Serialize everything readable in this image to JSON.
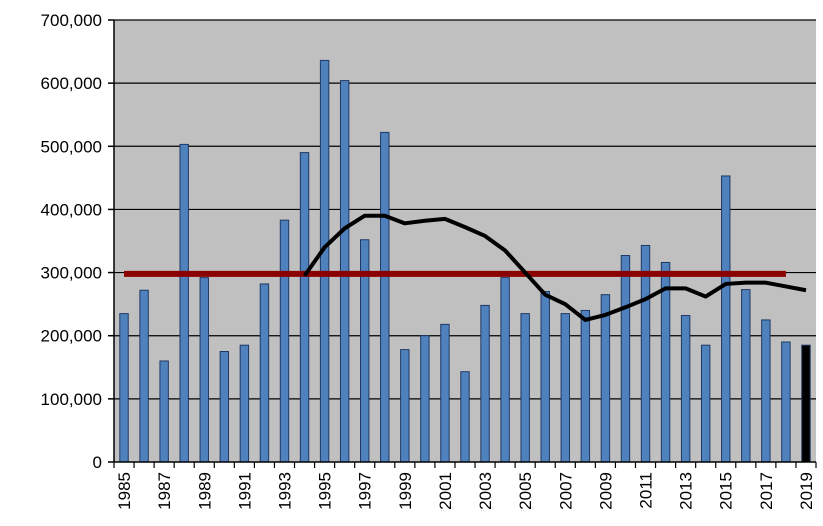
{
  "chart_data": {
    "type": "bar",
    "title": "",
    "xlabel": "",
    "ylabel": "",
    "ylim": [
      0,
      700000
    ],
    "yticks": [
      0,
      100000,
      200000,
      300000,
      400000,
      500000,
      600000,
      700000
    ],
    "ytick_labels": [
      "0",
      "100,000",
      "200,000",
      "300,000",
      "400,000",
      "500,000",
      "600,000",
      "700,000"
    ],
    "categories": [
      "1985",
      "1986",
      "1987",
      "1988",
      "1989",
      "1990",
      "1991",
      "1992",
      "1993",
      "1994",
      "1995",
      "1996",
      "1997",
      "1998",
      "1999",
      "2000",
      "2001",
      "2002",
      "2003",
      "2004",
      "2005",
      "2006",
      "2007",
      "2008",
      "2009",
      "2010",
      "2011",
      "2012",
      "2013",
      "2014",
      "2015",
      "2016",
      "2017",
      "2018",
      "2019"
    ],
    "x_tick_labels": [
      "1985",
      "1987",
      "1989",
      "1991",
      "1993",
      "1995",
      "1997",
      "1999",
      "2001",
      "2003",
      "2005",
      "2007",
      "2009",
      "2011",
      "2013",
      "2015",
      "2017",
      "2019"
    ],
    "grid": true,
    "legend": "none",
    "plot_background": "#c0c0c0",
    "series": [
      {
        "type": "bar",
        "color": "#4f81bd",
        "highlight_last_color": "#000000",
        "values": [
          235000,
          272000,
          160000,
          503000,
          292000,
          175000,
          185000,
          282000,
          383000,
          490000,
          636000,
          604000,
          352000,
          522000,
          178000,
          200000,
          218000,
          143000,
          248000,
          292000,
          235000,
          270000,
          235000,
          240000,
          265000,
          327000,
          343000,
          316000,
          232000,
          185000,
          453000,
          273000,
          225000,
          190000,
          185000
        ]
      },
      {
        "type": "line",
        "color": "#000000",
        "values": [
          null,
          null,
          null,
          null,
          null,
          null,
          null,
          null,
          null,
          295000,
          340000,
          370000,
          390000,
          390000,
          378000,
          382000,
          385000,
          372000,
          358000,
          335000,
          300000,
          265000,
          250000,
          225000,
          233000,
          245000,
          258000,
          275000,
          275000,
          262000,
          282000,
          284000,
          284000,
          278000,
          272000
        ]
      },
      {
        "type": "hline",
        "color": "#8b0000",
        "value": 298000,
        "x_start": "1985",
        "x_end": "2018"
      }
    ]
  }
}
